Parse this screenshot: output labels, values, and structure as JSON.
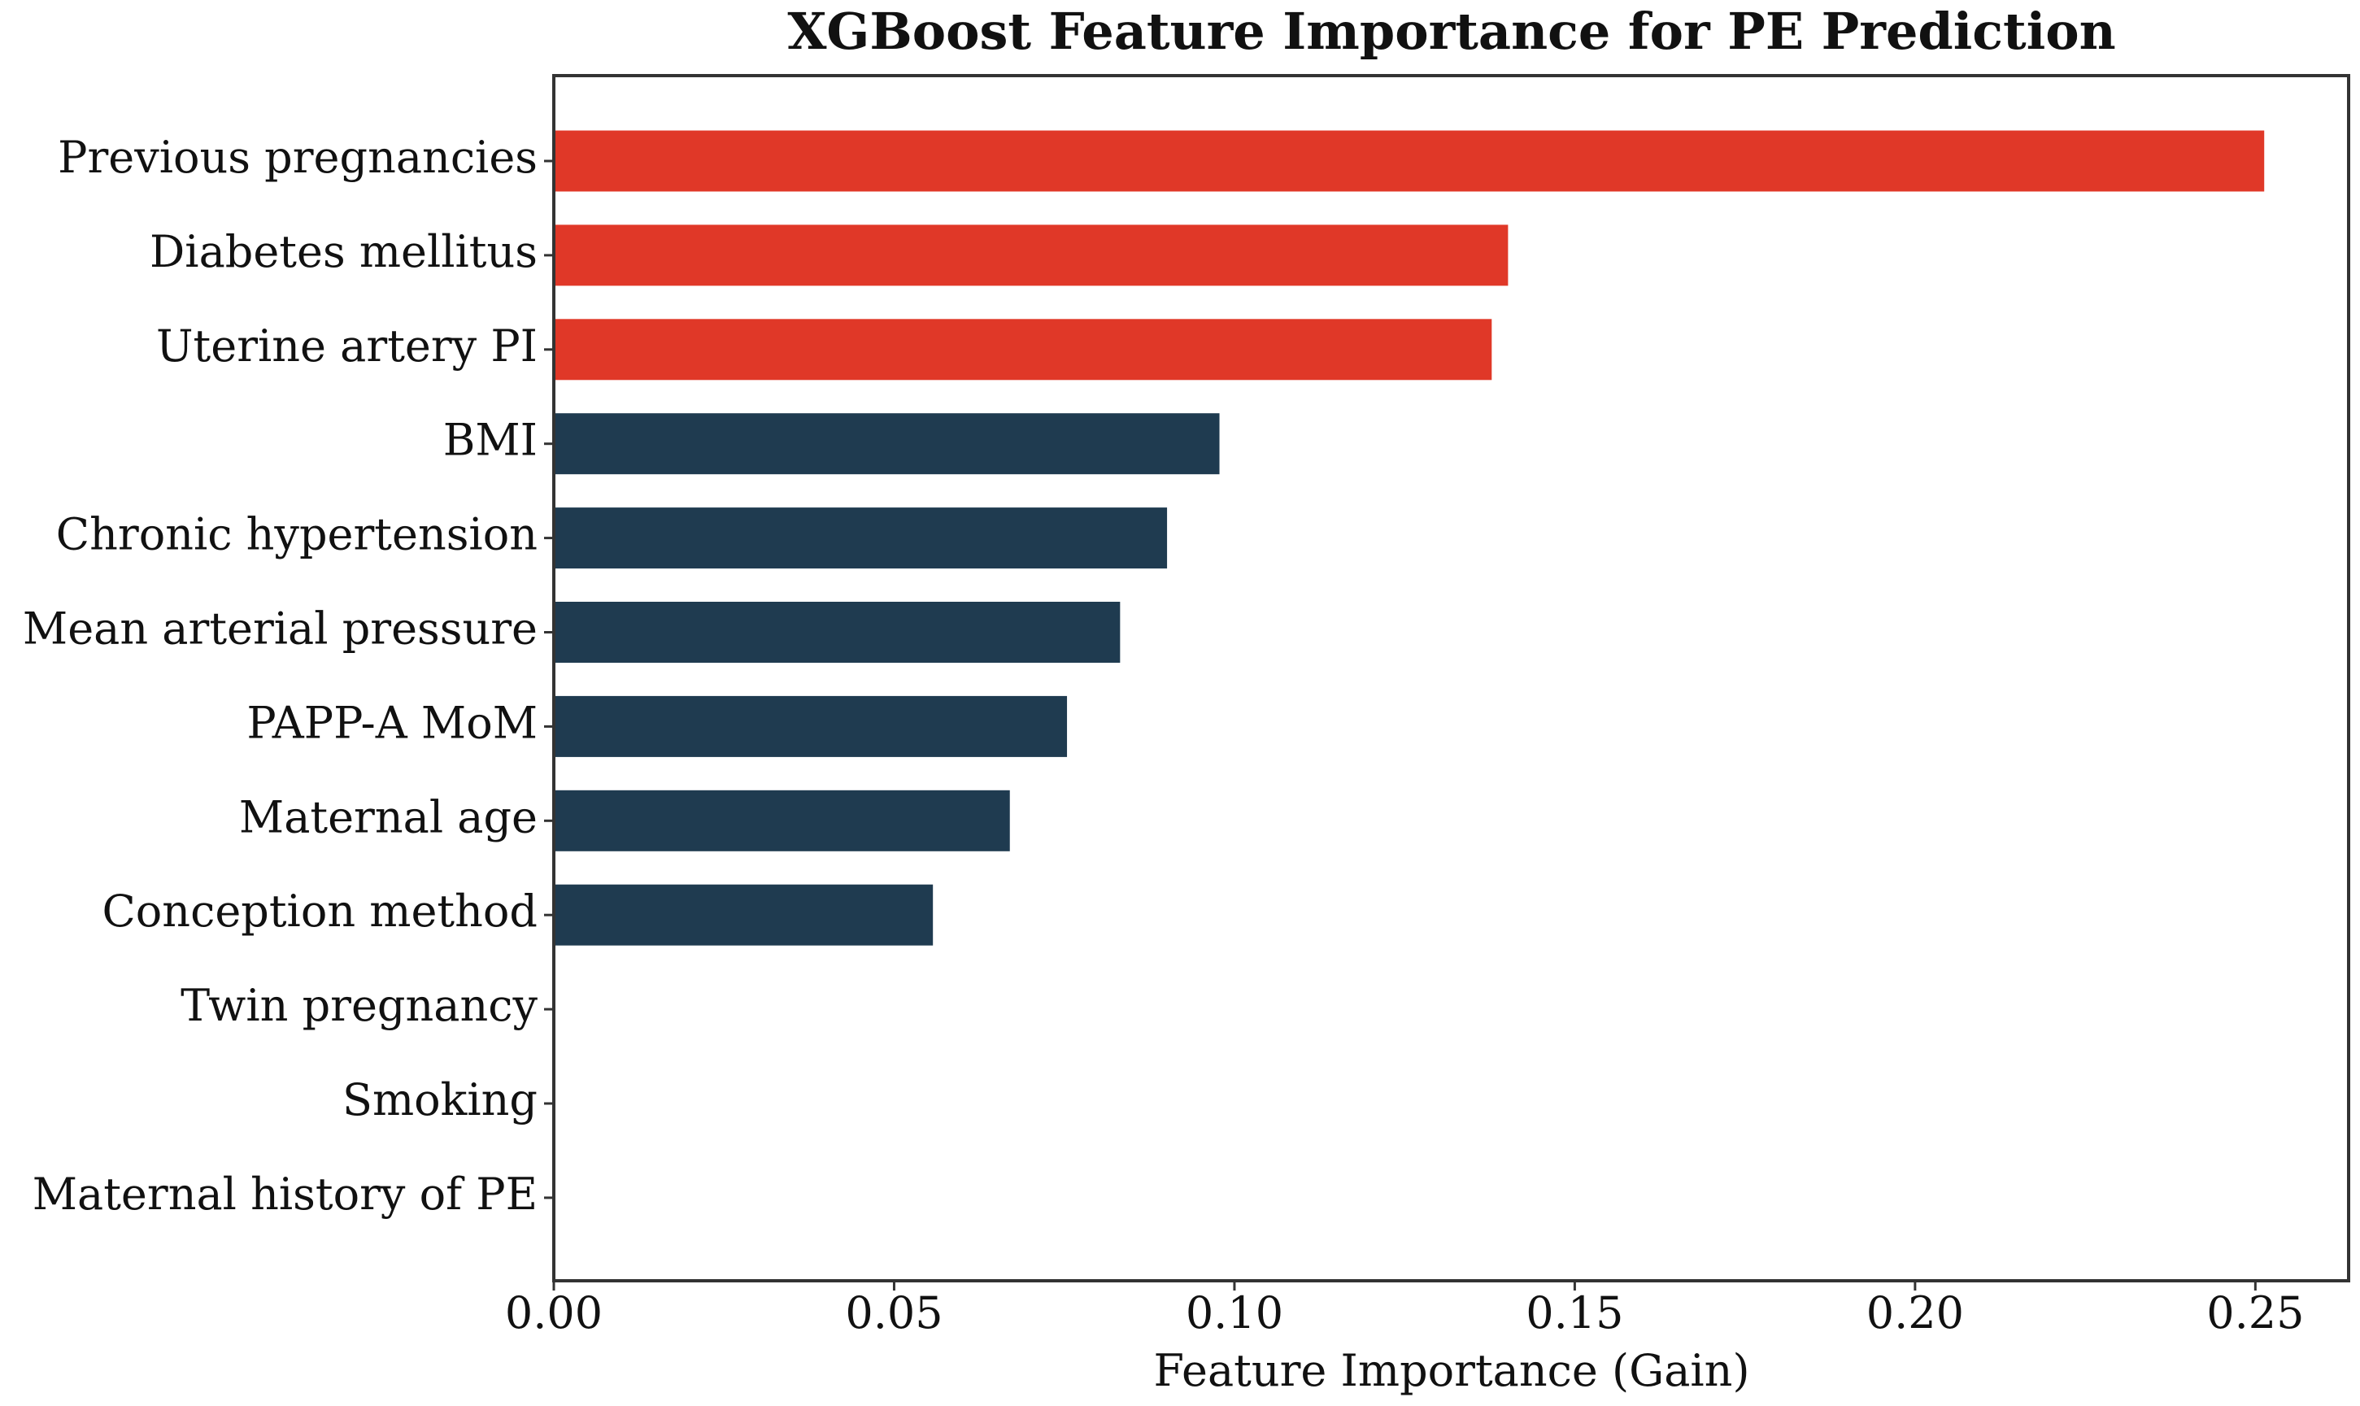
{
  "chart_data": {
    "type": "barh",
    "title": "XGBoost Feature Importance for PE Prediction",
    "xlabel": "Feature Importance (Gain)",
    "categories": [
      "Previous pregnancies",
      "Diabetes mellitus",
      "Uterine artery PI",
      "BMI",
      "Chronic hypertension",
      "Mean arterial pressure",
      "PAPP-A MoM",
      "Maternal age",
      "Conception method",
      "Twin pregnancy",
      "Smoking",
      "Maternal history of PE"
    ],
    "values": [
      0.2513,
      0.1402,
      0.1378,
      0.0978,
      0.0901,
      0.0832,
      0.0754,
      0.067,
      0.0557,
      0,
      0,
      0
    ],
    "colors": [
      "#e03828",
      "#e03828",
      "#e03828",
      "#1f3b50",
      "#1f3b50",
      "#1f3b50",
      "#1f3b50",
      "#1f3b50",
      "#1f3b50",
      "#1f3b50",
      "#1f3b50",
      "#1f3b50"
    ],
    "xlim": [
      0,
      0.2637
    ],
    "xticks": [
      {
        "value": 0,
        "label": "0.00"
      },
      {
        "value": 0.05,
        "label": "0.05"
      },
      {
        "value": 0.1,
        "label": "0.10"
      },
      {
        "value": 0.15,
        "label": "0.15"
      },
      {
        "value": 0.2,
        "label": "0.20"
      },
      {
        "value": 0.25,
        "label": "0.25"
      }
    ],
    "grid": false
  }
}
